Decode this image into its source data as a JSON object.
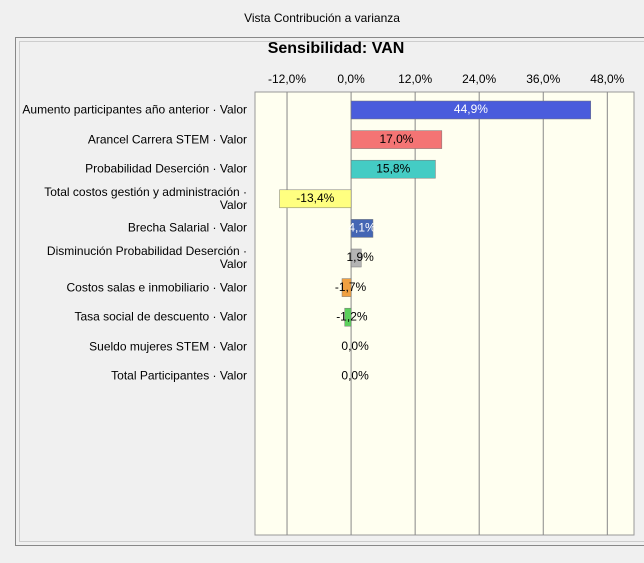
{
  "window_title": "Vista Contribución a varianza",
  "chart_data": {
    "type": "barh",
    "title": "Sensibilidad: VAN",
    "categories": [
      "Aumento participantes año anterior · Valor",
      "Arancel Carrera STEM · Valor",
      "Probabilidad Deserción · Valor",
      "Total costos gestión y administración · Valor",
      "Brecha Salarial · Valor",
      "Disminución Probabilidad Deserción · Valor",
      "Costos salas e inmobiliario · Valor",
      "Tasa social de descuento · Valor",
      "Sueldo mujeres STEM · Valor",
      "Total Participantes · Valor"
    ],
    "values": [
      44.9,
      17.0,
      15.8,
      -13.4,
      4.1,
      1.9,
      -1.7,
      -1.2,
      0.0,
      0.0
    ],
    "value_labels": [
      "44,9%",
      "17,0%",
      "15,8%",
      "-13,4%",
      "4,1%",
      "1,9%",
      "-1,7%",
      "-1,2%",
      "0,0%",
      "0,0%"
    ],
    "colors": [
      "#4a5cdc",
      "#f47474",
      "#44ccc4",
      "#ffff80",
      "#4466b4",
      "#b4b4b4",
      "#f0a040",
      "#5cd05c",
      "#888888",
      "#888888"
    ],
    "xlim": [
      -18,
      53
    ],
    "xticks": [
      {
        "value": -12,
        "label": "-12,0%"
      },
      {
        "value": 0,
        "label": "0,0%"
      },
      {
        "value": 12,
        "label": "12,0%"
      },
      {
        "value": 24,
        "label": "24,0%"
      },
      {
        "value": 36,
        "label": "36,0%"
      },
      {
        "value": 48,
        "label": "48,0%"
      }
    ],
    "grid": true
  }
}
